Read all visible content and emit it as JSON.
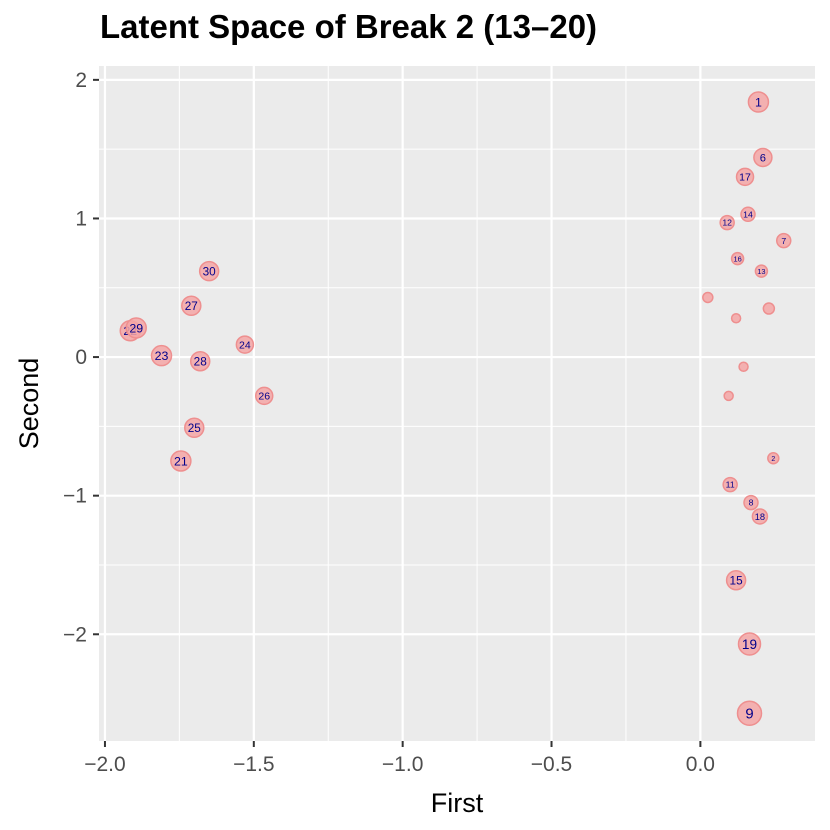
{
  "chart_data": {
    "type": "scatter",
    "title": "Latent Space of Break 2 (13–20)",
    "xlabel": "First",
    "ylabel": "Second",
    "xlim": [
      -2.02,
      0.385
    ],
    "ylim": [
      -2.77,
      2.1
    ],
    "x_ticks": [
      -2.0,
      -1.5,
      -1.0,
      -0.5,
      0.0
    ],
    "x_tick_labels": [
      "−2.0",
      "−1.5",
      "−1.0",
      "−0.5",
      "0.0"
    ],
    "y_ticks": [
      -2,
      -1,
      0,
      1,
      2
    ],
    "y_tick_labels": [
      "−2",
      "−1",
      "0",
      "1",
      "2"
    ],
    "grid": true,
    "colors": {
      "panel": "#ebebeb",
      "grid": "#ffffff",
      "point_fill": "#f4a6a6",
      "point_stroke": "#ee8f8f",
      "label": "#00008b"
    },
    "points": [
      {
        "label": "1",
        "x": 0.195,
        "y": 1.84,
        "size": 20
      },
      {
        "label": "6",
        "x": 0.21,
        "y": 1.44,
        "size": 18
      },
      {
        "label": "17",
        "x": 0.15,
        "y": 1.3,
        "size": 17
      },
      {
        "label": "14",
        "x": 0.16,
        "y": 1.03,
        "size": 14
      },
      {
        "label": "12",
        "x": 0.09,
        "y": 0.97,
        "size": 14
      },
      {
        "label": "7",
        "x": 0.28,
        "y": 0.84,
        "size": 14
      },
      {
        "label": "16",
        "x": 0.125,
        "y": 0.71,
        "size": 12
      },
      {
        "label": "13",
        "x": 0.205,
        "y": 0.62,
        "size": 12
      },
      {
        "label": "",
        "x": 0.025,
        "y": 0.43,
        "size": 10
      },
      {
        "label": "",
        "x": 0.23,
        "y": 0.35,
        "size": 11
      },
      {
        "label": "",
        "x": 0.12,
        "y": 0.28,
        "size": 9
      },
      {
        "label": "",
        "x": 0.145,
        "y": -0.07,
        "size": 9
      },
      {
        "label": "",
        "x": 0.095,
        "y": -0.28,
        "size": 9
      },
      {
        "label": "2",
        "x": 0.245,
        "y": -0.73,
        "size": 11
      },
      {
        "label": "11",
        "x": 0.1,
        "y": -0.92,
        "size": 14
      },
      {
        "label": "8",
        "x": 0.17,
        "y": -1.05,
        "size": 14
      },
      {
        "label": "18",
        "x": 0.2,
        "y": -1.15,
        "size": 15
      },
      {
        "label": "15",
        "x": 0.12,
        "y": -1.61,
        "size": 19
      },
      {
        "label": "19",
        "x": 0.165,
        "y": -2.07,
        "size": 22
      },
      {
        "label": "9",
        "x": 0.165,
        "y": -2.57,
        "size": 24
      },
      {
        "label": "30",
        "x": -1.65,
        "y": 0.62,
        "size": 19
      },
      {
        "label": "27",
        "x": -1.71,
        "y": 0.37,
        "size": 19
      },
      {
        "label": "24",
        "x": -1.53,
        "y": 0.09,
        "size": 17
      },
      {
        "label": "22",
        "x": -1.915,
        "y": 0.19,
        "size": 20
      },
      {
        "label": "29",
        "x": -1.895,
        "y": 0.21,
        "size": 20
      },
      {
        "label": "23",
        "x": -1.81,
        "y": 0.01,
        "size": 20
      },
      {
        "label": "28",
        "x": -1.68,
        "y": -0.03,
        "size": 19
      },
      {
        "label": "26",
        "x": -1.465,
        "y": -0.28,
        "size": 17
      },
      {
        "label": "25",
        "x": -1.7,
        "y": -0.51,
        "size": 19
      },
      {
        "label": "21",
        "x": -1.745,
        "y": -0.75,
        "size": 20
      }
    ]
  }
}
